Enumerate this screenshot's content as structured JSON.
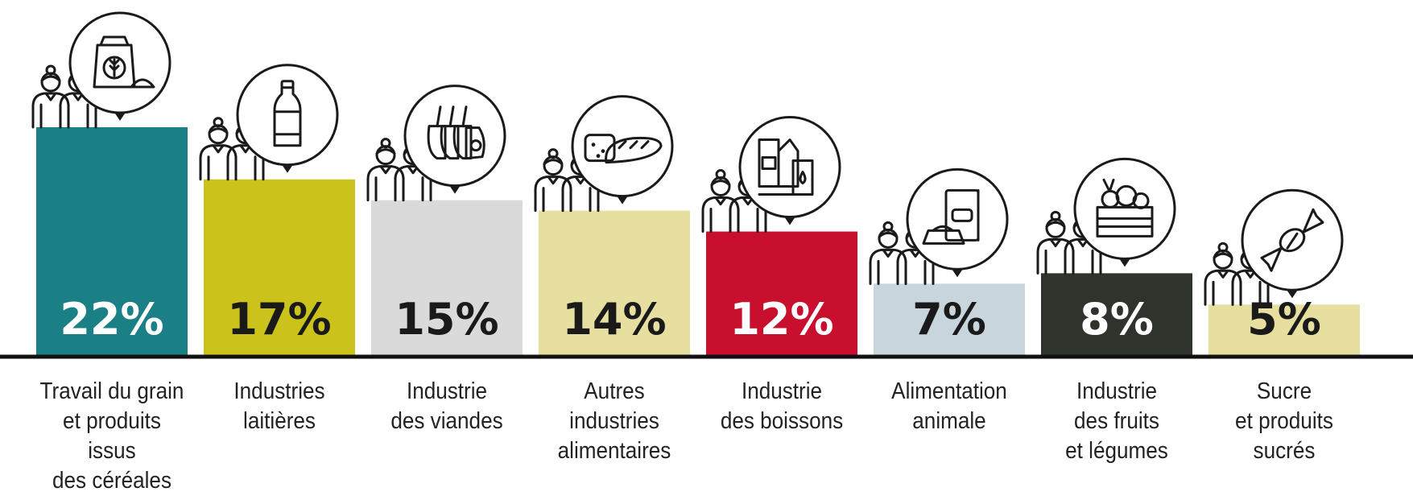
{
  "chart_data": {
    "type": "bar",
    "categories": [
      "Travail du grain\net produits issus\ndes céréales",
      "Industries\nlaitières",
      "Industrie\ndes viandes",
      "Autres\nindustries\nalimentaires",
      "Industrie\ndes boissons",
      "Alimentation\nanimale",
      "Industrie\ndes fruits\net légumes",
      "Sucre\net produits\nsucrés"
    ],
    "values": [
      22,
      17,
      15,
      14,
      12,
      7,
      8,
      5
    ],
    "value_labels": [
      "22%",
      "17%",
      "15%",
      "14%",
      "12%",
      "7%",
      "8%",
      "5%"
    ],
    "unit": "%",
    "ylim": [
      0,
      22
    ],
    "grid": false,
    "title": "",
    "xlabel": "",
    "ylabel": ""
  },
  "colors": {
    "bars": [
      "#1b7f86",
      "#cbc21b",
      "#d9dad9",
      "#e7df9f",
      "#c8102e",
      "#c8d5dc",
      "#2e332c",
      "#e7df9f"
    ],
    "value_text": [
      "#ffffff",
      "#1a1a1a",
      "#1a1a1a",
      "#1a1a1a",
      "#ffffff",
      "#1a1a1a",
      "#ffffff",
      "#1a1a1a"
    ],
    "axis": "#111111",
    "icons": "#1a1a1a"
  },
  "icons": [
    "grain-sack-icon",
    "milk-bottle-icon",
    "meat-rack-icon",
    "bread-icon",
    "beverage-cartons-icon",
    "pet-food-icon",
    "vegetable-crate-icon",
    "candy-icon"
  ],
  "people_icon": "workers-icon"
}
